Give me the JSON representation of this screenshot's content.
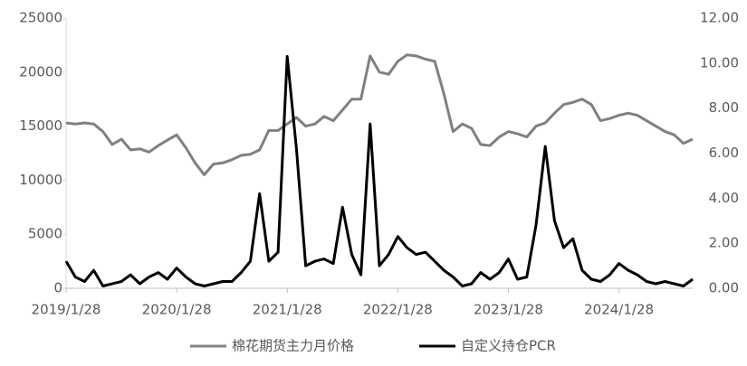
{
  "chart_data": {
    "type": "line",
    "categories": [
      "2019/1/28",
      null,
      null,
      null,
      null,
      null,
      null,
      null,
      null,
      null,
      null,
      null,
      "2020/1/28",
      null,
      null,
      null,
      null,
      null,
      null,
      null,
      null,
      null,
      null,
      null,
      "2021/1/28",
      null,
      null,
      null,
      null,
      null,
      null,
      null,
      null,
      null,
      null,
      null,
      "2022/1/28",
      null,
      null,
      null,
      null,
      null,
      null,
      null,
      null,
      null,
      null,
      null,
      "2023/1/28",
      null,
      null,
      null,
      null,
      null,
      null,
      null,
      null,
      null,
      null,
      null,
      "2024/1/28",
      null,
      null,
      null,
      null,
      null,
      null,
      null,
      null
    ],
    "series": [
      {
        "name": "棉花期货主力月价格",
        "color": "#808080",
        "axis": "y",
        "values": [
          15300,
          15200,
          15300,
          15200,
          14500,
          13300,
          13800,
          12800,
          12900,
          12600,
          13200,
          13700,
          14200,
          13000,
          11600,
          10500,
          11500,
          11600,
          11900,
          12300,
          12400,
          12800,
          14600,
          14600,
          15200,
          15800,
          15000,
          15200,
          15900,
          15500,
          16500,
          17500,
          17500,
          21500,
          20000,
          19800,
          21000,
          21600,
          21500,
          21200,
          21000,
          18000,
          14500,
          15200,
          14800,
          13300,
          13200,
          14000,
          14500,
          14300,
          14000,
          15000,
          15300,
          16200,
          17000,
          17200,
          17500,
          17000,
          15500,
          15700,
          16000,
          16200,
          16000,
          15500,
          15000,
          14500,
          14200,
          13400,
          13800
        ]
      },
      {
        "name": "自定义持仓PCR",
        "color": "#000000",
        "axis": "y2",
        "values": [
          1.2,
          0.5,
          0.3,
          0.8,
          0.1,
          0.2,
          0.3,
          0.6,
          0.2,
          0.5,
          0.7,
          0.4,
          0.9,
          0.5,
          0.2,
          0.1,
          0.2,
          0.3,
          0.3,
          0.7,
          1.2,
          4.2,
          1.2,
          1.6,
          10.3,
          6.2,
          1.0,
          1.2,
          1.3,
          1.1,
          3.6,
          1.5,
          0.6,
          7.3,
          1.0,
          1.5,
          2.3,
          1.8,
          1.5,
          1.6,
          1.2,
          0.8,
          0.5,
          0.1,
          0.2,
          0.7,
          0.4,
          0.7,
          1.3,
          0.4,
          0.5,
          2.8,
          6.3,
          3.0,
          1.8,
          2.2,
          0.8,
          0.4,
          0.3,
          0.6,
          1.1,
          0.8,
          0.6,
          0.3,
          0.2,
          0.3,
          0.2,
          0.1,
          0.4
        ]
      }
    ],
    "ylim": [
      0,
      25000
    ],
    "yticks": [
      0,
      5000,
      10000,
      15000,
      20000,
      25000
    ],
    "y2lim": [
      0,
      12
    ],
    "y2ticks": [
      {
        "value": 0,
        "label": "0.00"
      },
      {
        "value": 2,
        "label": "2.00"
      },
      {
        "value": 4,
        "label": "4.00"
      },
      {
        "value": 6,
        "label": "6.00"
      },
      {
        "value": 8,
        "label": "8.00"
      },
      {
        "value": 10,
        "label": "10.00"
      },
      {
        "value": 12,
        "label": "12.00"
      }
    ],
    "legend": "bottom"
  }
}
